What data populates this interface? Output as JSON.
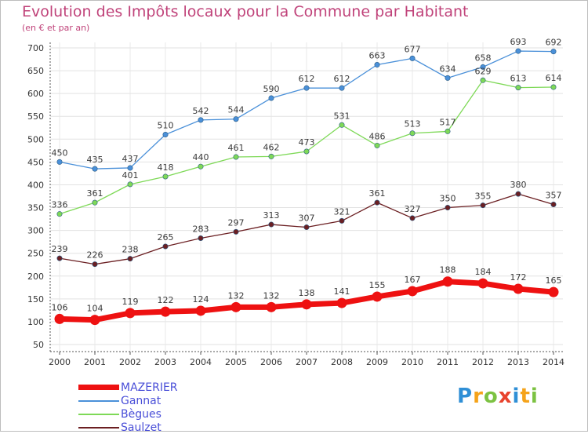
{
  "chart_data": {
    "type": "line",
    "title": "Evolution des Impôts locaux pour la Commune par Habitant",
    "subtitle": "(en € et par an)",
    "categories": [
      "2000",
      "2001",
      "2002",
      "2003",
      "2004",
      "2005",
      "2006",
      "2007",
      "2008",
      "2009",
      "2010",
      "2011",
      "2012",
      "2013",
      "2014"
    ],
    "ylim": [
      50,
      700
    ],
    "yticks": [
      50,
      100,
      150,
      200,
      250,
      300,
      350,
      400,
      450,
      500,
      550,
      600,
      650,
      700
    ],
    "grid": true,
    "legend_position": "bottom-left",
    "series": [
      {
        "name": "MAZERIER",
        "color": "#ee1111",
        "values": [
          106,
          104,
          119,
          122,
          124,
          132,
          132,
          138,
          141,
          155,
          167,
          188,
          184,
          172,
          165
        ]
      },
      {
        "name": "Gannat",
        "color": "#4a90d9",
        "values": [
          450,
          435,
          437,
          510,
          542,
          544,
          590,
          612,
          612,
          663,
          677,
          634,
          658,
          693,
          692
        ]
      },
      {
        "name": "Bègues",
        "color": "#7ed957",
        "values": [
          336,
          361,
          401,
          418,
          440,
          461,
          462,
          473,
          531,
          486,
          513,
          517,
          629,
          613,
          614
        ]
      },
      {
        "name": "Saulzet",
        "color": "#6b1f22",
        "values": [
          239,
          226,
          238,
          265,
          283,
          297,
          313,
          307,
          321,
          361,
          327,
          350,
          355,
          380,
          357
        ]
      }
    ]
  },
  "logo": {
    "text": "Proxiti",
    "letters": [
      "P",
      "r",
      "o",
      "x",
      "i",
      "t",
      "i"
    ],
    "colors": [
      "#2f8fd6",
      "#f5a31a",
      "#7cc242",
      "#e8432d",
      "#2f8fd6",
      "#f5a31a",
      "#7cc242"
    ]
  }
}
